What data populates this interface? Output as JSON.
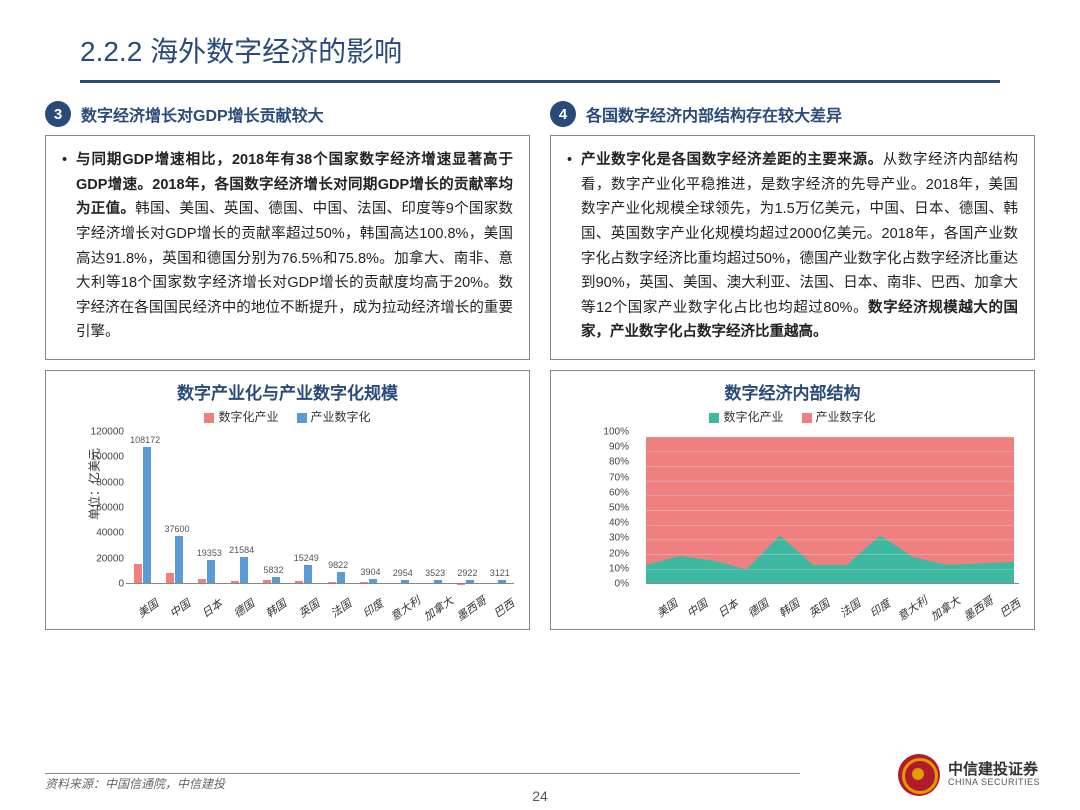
{
  "header": {
    "number": "2.2.2",
    "title": "海外数字经济的影响"
  },
  "left": {
    "badge": "3",
    "title": "数字经济增长对GDP增长贡献较大",
    "bold_lead": "与同期GDP增速相比，2018年有38个国家数字经济增速显著高于GDP增速。2018年，各国数字经济增长对同期GDP增长的贡献率均为正值。",
    "body_rest": "韩国、美国、英国、德国、中国、法国、印度等9个国家数字经济增长对GDP增长的贡献率超过50%，韩国高达100.8%，美国高达91.8%，英国和德国分别为76.5%和75.8%。加拿大、南非、意大利等18个国家数字经济增长对GDP增长的贡献度均高于20%。数字经济在各国国民经济中的地位不断提升，成为拉动经济增长的重要引擎。"
  },
  "right": {
    "badge": "4",
    "title": "各国数字经济内部结构存在较大差异",
    "bold_lead": "产业数字化是各国数字经济差距的主要来源。",
    "body_mid": "从数字经济内部结构看，数字产业化平稳推进，是数字经济的先导产业。2018年，美国数字产业化规模全球领先，为1.5万亿美元，中国、日本、德国、韩国、英国数字产业化规模均超过2000亿美元。2018年，各国产业数字化占数字经济比重均超过50%，德国产业数字化占数字经济比重达到90%，英国、美国、澳大利亚、法国、日本、南非、巴西、加拿大等12个国家产业数字化占比也均超过80%。",
    "bold_tail": "数字经济规模越大的国家，产业数字化占数字经济比重越高。"
  },
  "chart1": {
    "title": "数字产业化与产业数字化规模",
    "legend": {
      "a": "数字化产业",
      "b": "产业数字化"
    },
    "colors": {
      "a": "#f08080",
      "b": "#5b9bd5"
    },
    "yaxis_label": "单位：亿美元",
    "ymax": 120000,
    "yticks": [
      0,
      20000,
      40000,
      60000,
      80000,
      100000,
      120000
    ],
    "countries": [
      "美国",
      "中国",
      "日本",
      "德国",
      "韩国",
      "英国",
      "法国",
      "印度",
      "意大利",
      "加拿大",
      "墨西哥",
      "巴西"
    ],
    "series_a": [
      15500,
      9000,
      3800,
      2400,
      2900,
      2200,
      1400,
      1900,
      600,
      500,
      400,
      500
    ],
    "series_b": [
      108172,
      37600,
      19353,
      21584,
      5832,
      15249,
      9822,
      3904,
      2954,
      3523,
      2922,
      3121
    ],
    "b_labels": [
      "108172",
      "37600",
      "19353",
      "21584",
      "5832",
      "15249",
      "9822",
      "3904",
      "2954",
      "3523",
      "2922",
      "3121"
    ]
  },
  "chart2": {
    "title": "数字经济内部结构",
    "legend": {
      "a": "数字化产业",
      "b": "产业数字化"
    },
    "colors": {
      "a": "#3cb9a0",
      "b": "#f08080",
      "grid": "#cccccc"
    },
    "ymax": 100,
    "yticks": [
      0,
      10,
      20,
      30,
      40,
      50,
      60,
      70,
      80,
      90,
      100
    ],
    "countries": [
      "美国",
      "中国",
      "日本",
      "德国",
      "韩国",
      "英国",
      "法国",
      "印度",
      "意大利",
      "加拿大",
      "墨西哥",
      "巴西"
    ],
    "lower_pct": [
      13,
      19,
      16,
      10,
      33,
      13,
      13,
      33,
      18,
      13,
      14,
      15
    ]
  },
  "footer": {
    "source": "资料来源：中国信通院，中信建投",
    "page": "24",
    "logo_cn": "中信建投证券",
    "logo_en": "CHINA SECURITIES"
  }
}
